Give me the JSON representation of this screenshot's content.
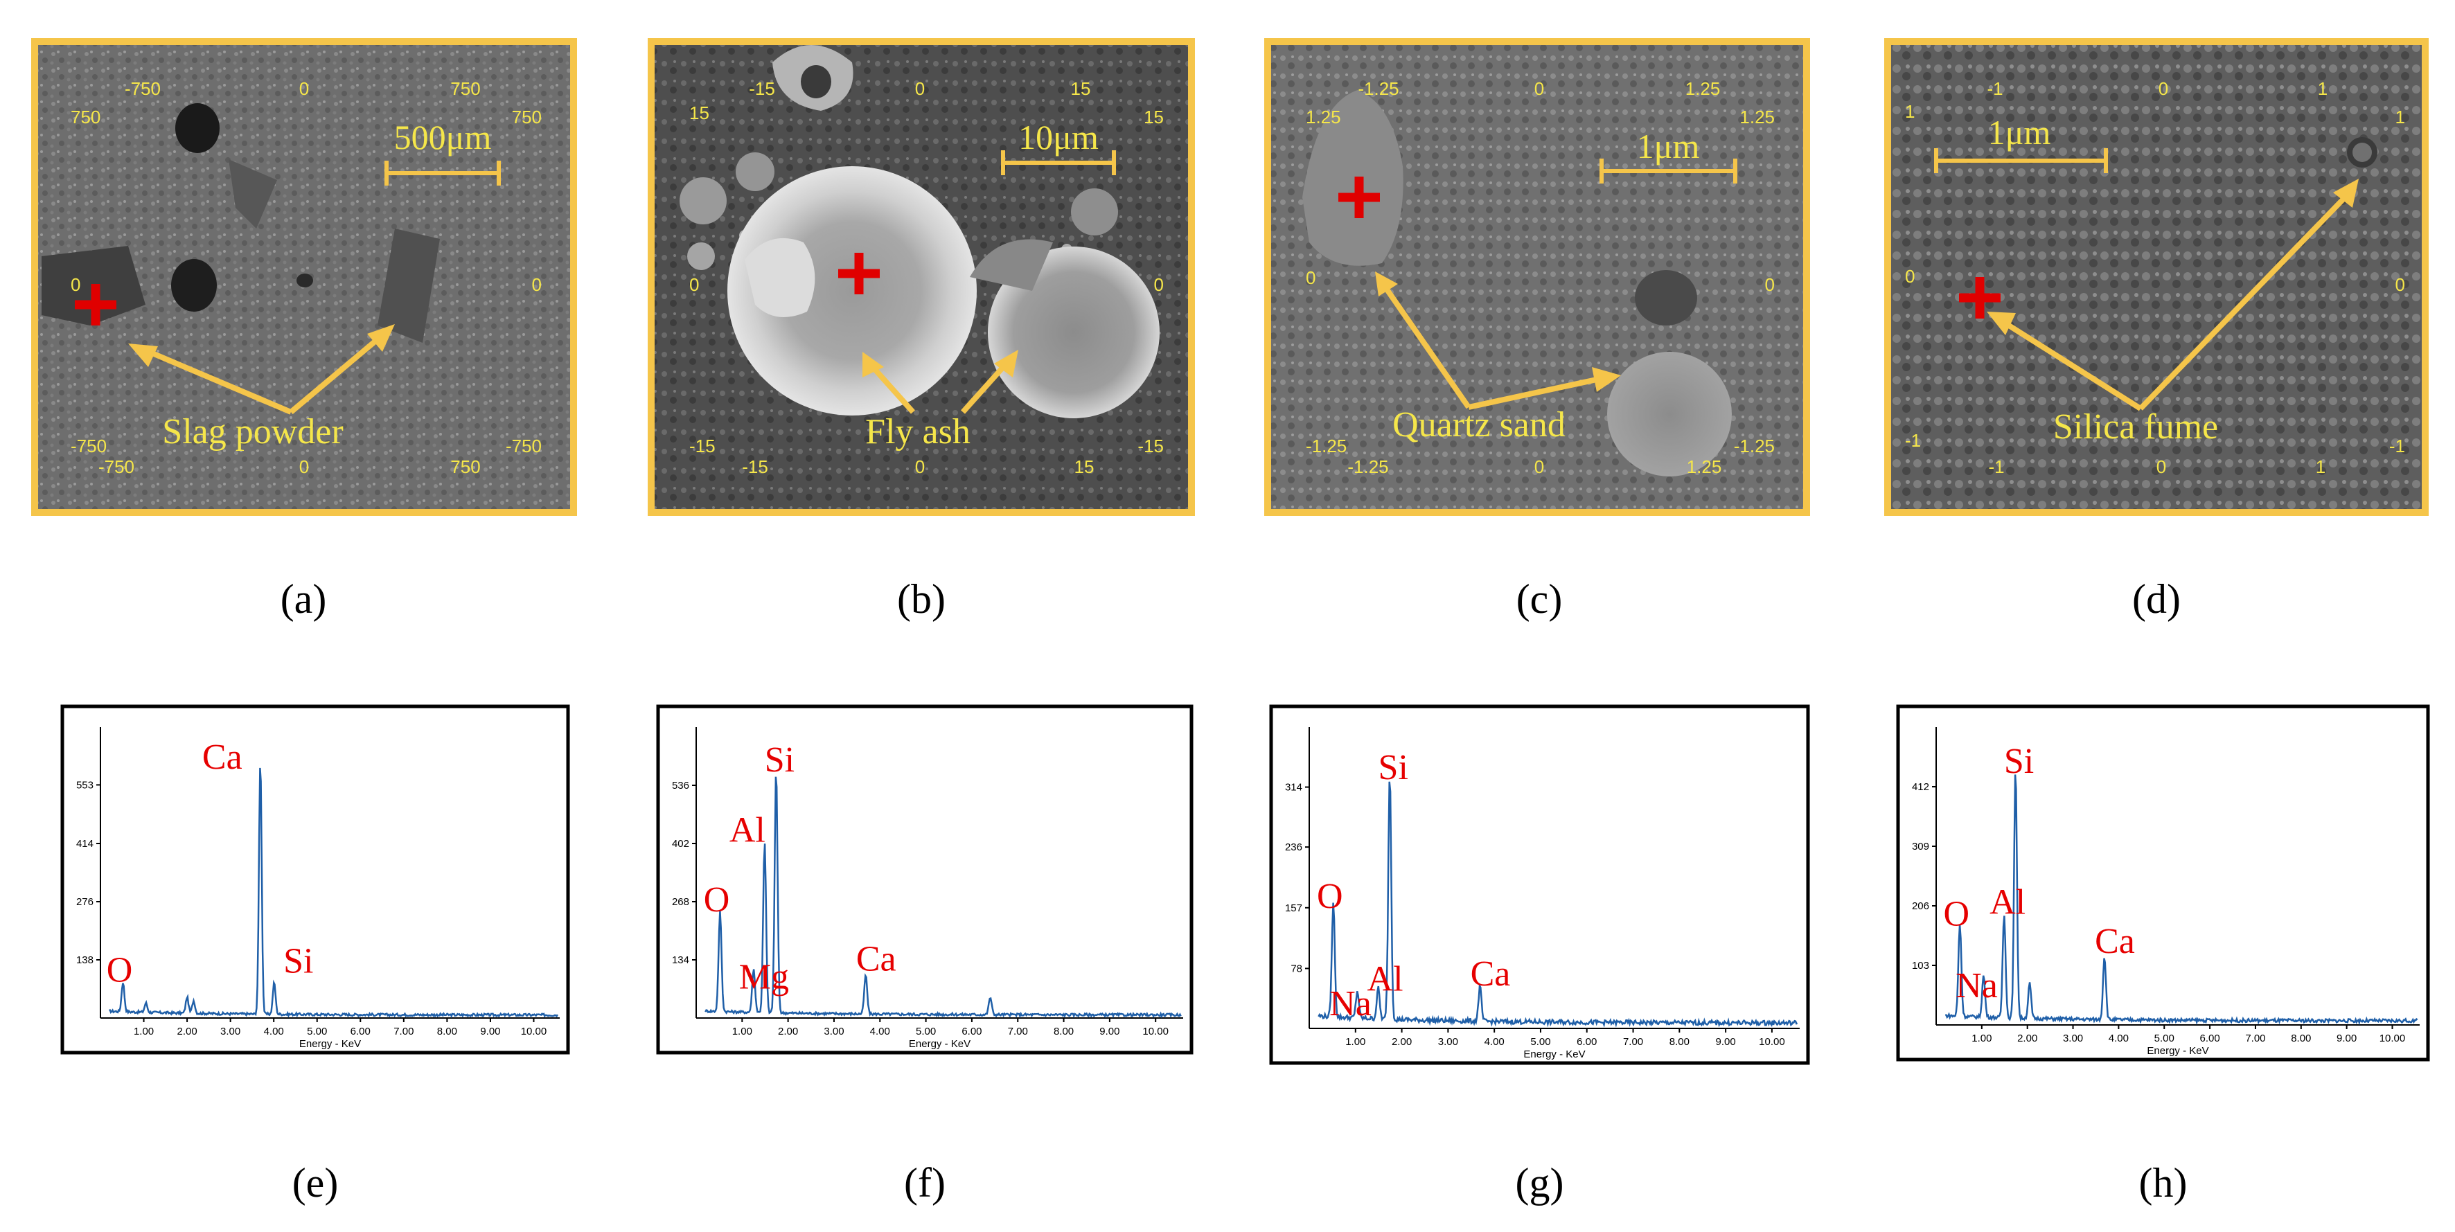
{
  "sem_panels": [
    {
      "caption": "(a)",
      "ticks": {
        "top": [
          "-750",
          "0",
          "750"
        ],
        "bottom": [
          "-750",
          "0",
          "750"
        ],
        "left": [
          "750",
          "0",
          "-750"
        ],
        "right": [
          "750",
          "0",
          "-750"
        ]
      },
      "scale_bar": "500μm",
      "material": "Slag powder"
    },
    {
      "caption": "(b)",
      "ticks": {
        "top": [
          "-15",
          "0",
          "15"
        ],
        "bottom": [
          "-15",
          "0",
          "15"
        ],
        "left": [
          "15",
          "0",
          "-15"
        ],
        "right": [
          "15",
          "0",
          "-15"
        ]
      },
      "scale_bar": "10μm",
      "material": "Fly ash"
    },
    {
      "caption": "(c)",
      "ticks": {
        "top": [
          "-1.25",
          "0",
          "1.25"
        ],
        "bottom": [
          "-1.25",
          "0",
          "1.25"
        ],
        "left": [
          "1.25",
          "0",
          "-1.25"
        ],
        "right": [
          "1.25",
          "0",
          "-1.25"
        ]
      },
      "scale_bar": "1μm",
      "material": "Quartz sand"
    },
    {
      "caption": "(d)",
      "ticks": {
        "top": [
          "-1",
          "0",
          "1"
        ],
        "bottom": [
          "-1",
          "0",
          "1"
        ],
        "left": [
          "1",
          "0",
          "-1"
        ],
        "right": [
          "1",
          "0",
          "-1"
        ]
      },
      "scale_bar": "1μm",
      "material": "Silica fume"
    }
  ],
  "chart_data": [
    {
      "type": "line",
      "caption": "(e)",
      "xlabel": "Energy - KeV",
      "x_ticks": [
        "1.00",
        "2.00",
        "3.00",
        "4.00",
        "5.00",
        "6.00",
        "7.00",
        "8.00",
        "9.00",
        "10.00"
      ],
      "y_ticks": [
        "138",
        "276",
        "414",
        "553"
      ],
      "xlim": [
        0,
        10.6
      ],
      "ylim": [
        0,
        690
      ],
      "colors": {
        "line": "#1f5fa8",
        "label": "#e60000"
      },
      "peaks": [
        {
          "x": 0.52,
          "y": 70
        },
        {
          "x": 1.05,
          "y": 22
        },
        {
          "x": 2.0,
          "y": 38
        },
        {
          "x": 2.15,
          "y": 30
        },
        {
          "x": 3.69,
          "y": 600
        },
        {
          "x": 4.01,
          "y": 75
        }
      ],
      "peak_labels": [
        {
          "text": "O",
          "x": 0.52,
          "y": 70
        },
        {
          "text": "Ca",
          "x": 3.69,
          "y": 600
        },
        {
          "text": "Si",
          "x": 4.01,
          "y": 75
        }
      ]
    },
    {
      "type": "line",
      "caption": "(f)",
      "xlabel": "Energy - KeV",
      "x_ticks": [
        "1.00",
        "2.00",
        "3.00",
        "4.00",
        "5.00",
        "6.00",
        "7.00",
        "8.00",
        "9.00",
        "10.00"
      ],
      "y_ticks": [
        "134",
        "268",
        "402",
        "536"
      ],
      "xlim": [
        0,
        10.6
      ],
      "ylim": [
        0,
        670
      ],
      "colors": {
        "line": "#1f5fa8",
        "label": "#e60000"
      },
      "peaks": [
        {
          "x": 0.52,
          "y": 230
        },
        {
          "x": 1.25,
          "y": 100
        },
        {
          "x": 1.49,
          "y": 390
        },
        {
          "x": 1.74,
          "y": 560
        },
        {
          "x": 3.69,
          "y": 90
        },
        {
          "x": 6.4,
          "y": 40
        }
      ],
      "peak_labels": [
        {
          "text": "O",
          "x": 0.52,
          "y": 230
        },
        {
          "text": "Mg",
          "x": 1.25,
          "y": 100
        },
        {
          "text": "Al",
          "x": 1.49,
          "y": 390
        },
        {
          "text": "Si",
          "x": 1.74,
          "y": 560
        },
        {
          "text": "Ca",
          "x": 3.69,
          "y": 90
        }
      ]
    },
    {
      "type": "line",
      "caption": "(g)",
      "xlabel": "Energy - KeV",
      "x_ticks": [
        "1.00",
        "2.00",
        "3.00",
        "4.00",
        "5.00",
        "6.00",
        "7.00",
        "8.00",
        "9.00",
        "10.00"
      ],
      "y_ticks": [
        "78",
        "157",
        "236",
        "314"
      ],
      "xlim": [
        0,
        10.6
      ],
      "ylim": [
        0,
        392
      ],
      "colors": {
        "line": "#1f5fa8",
        "label": "#e60000"
      },
      "peaks": [
        {
          "x": 0.52,
          "y": 148
        },
        {
          "x": 1.04,
          "y": 35
        },
        {
          "x": 1.49,
          "y": 40
        },
        {
          "x": 1.74,
          "y": 320
        },
        {
          "x": 3.69,
          "y": 45
        }
      ],
      "peak_labels": [
        {
          "text": "O",
          "x": 0.52,
          "y": 148
        },
        {
          "text": "Na",
          "x": 1.04,
          "y": 35
        },
        {
          "text": "Al",
          "x": 1.49,
          "y": 40
        },
        {
          "text": "Si",
          "x": 1.74,
          "y": 320
        },
        {
          "text": "Ca",
          "x": 3.69,
          "y": 45
        }
      ]
    },
    {
      "type": "line",
      "caption": "(h)",
      "xlabel": "Energy - KeV",
      "x_ticks": [
        "1.00",
        "2.00",
        "3.00",
        "4.00",
        "5.00",
        "6.00",
        "7.00",
        "8.00",
        "9.00",
        "10.00"
      ],
      "y_ticks": [
        "103",
        "206",
        "309",
        "412"
      ],
      "xlim": [
        0,
        10.6
      ],
      "ylim": [
        0,
        515
      ],
      "colors": {
        "line": "#1f5fa8",
        "label": "#e60000"
      },
      "peaks": [
        {
          "x": 0.52,
          "y": 160
        },
        {
          "x": 1.04,
          "y": 72
        },
        {
          "x": 1.49,
          "y": 180
        },
        {
          "x": 1.74,
          "y": 430
        },
        {
          "x": 2.05,
          "y": 60
        },
        {
          "x": 3.69,
          "y": 110
        }
      ],
      "peak_labels": [
        {
          "text": "O",
          "x": 0.52,
          "y": 160
        },
        {
          "text": "Na",
          "x": 1.04,
          "y": 72
        },
        {
          "text": "Al",
          "x": 1.49,
          "y": 180
        },
        {
          "text": "Si",
          "x": 1.74,
          "y": 430
        },
        {
          "text": "Ca",
          "x": 3.69,
          "y": 110
        }
      ]
    }
  ]
}
